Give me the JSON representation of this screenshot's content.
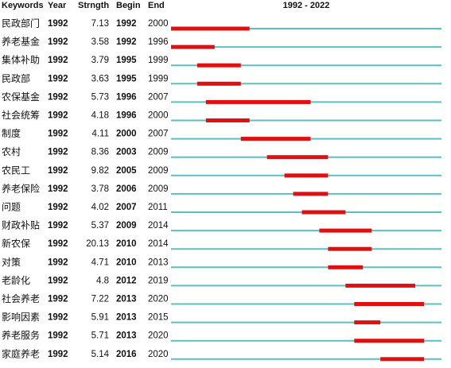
{
  "chart_data": {
    "type": "burst",
    "headers": [
      "Keywords",
      "Year",
      "Strngth",
      "Begin",
      "End"
    ],
    "title": "1992 - 2022",
    "xlim": [
      1992,
      2022
    ],
    "line_color": "#5bc0be",
    "burst_color": "#e01010",
    "rows": [
      {
        "keyword": "民政部门",
        "year": 1992,
        "strength": 7.13,
        "begin": 1992,
        "end": 2000
      },
      {
        "keyword": "养老基金",
        "year": 1992,
        "strength": 3.58,
        "begin": 1992,
        "end": 1996
      },
      {
        "keyword": "集体补助",
        "year": 1992,
        "strength": 3.79,
        "begin": 1995,
        "end": 1999
      },
      {
        "keyword": "民政部",
        "year": 1992,
        "strength": 3.63,
        "begin": 1995,
        "end": 1999
      },
      {
        "keyword": "农保基金",
        "year": 1992,
        "strength": 5.73,
        "begin": 1996,
        "end": 2007
      },
      {
        "keyword": "社会统筹",
        "year": 1992,
        "strength": 4.18,
        "begin": 1996,
        "end": 2000
      },
      {
        "keyword": "制度",
        "year": 1992,
        "strength": 4.11,
        "begin": 2000,
        "end": 2007
      },
      {
        "keyword": "农村",
        "year": 1992,
        "strength": 8.36,
        "begin": 2003,
        "end": 2009
      },
      {
        "keyword": "农民工",
        "year": 1992,
        "strength": 9.82,
        "begin": 2005,
        "end": 2009
      },
      {
        "keyword": "养老保险",
        "year": 1992,
        "strength": 3.78,
        "begin": 2006,
        "end": 2009
      },
      {
        "keyword": "问题",
        "year": 1992,
        "strength": 4.02,
        "begin": 2007,
        "end": 2011
      },
      {
        "keyword": "财政补贴",
        "year": 1992,
        "strength": 5.37,
        "begin": 2009,
        "end": 2014
      },
      {
        "keyword": "新农保",
        "year": 1992,
        "strength": 20.13,
        "begin": 2010,
        "end": 2014
      },
      {
        "keyword": "对策",
        "year": 1992,
        "strength": 4.71,
        "begin": 2010,
        "end": 2013
      },
      {
        "keyword": "老龄化",
        "year": 1992,
        "strength": 4.8,
        "begin": 2012,
        "end": 2019
      },
      {
        "keyword": "社会养老",
        "year": 1992,
        "strength": 7.22,
        "begin": 2013,
        "end": 2020
      },
      {
        "keyword": "影响因素",
        "year": 1992,
        "strength": 5.91,
        "begin": 2013,
        "end": 2015
      },
      {
        "keyword": "养老服务",
        "year": 1992,
        "strength": 5.71,
        "begin": 2013,
        "end": 2020
      },
      {
        "keyword": "家庭养老",
        "year": 1992,
        "strength": 5.14,
        "begin": 2016,
        "end": 2020
      }
    ]
  }
}
